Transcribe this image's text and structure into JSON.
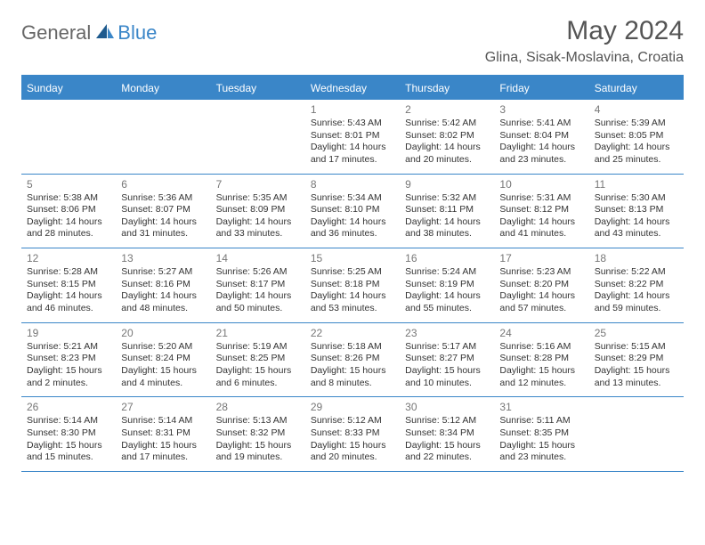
{
  "logo": {
    "general": "General",
    "blue": "Blue"
  },
  "title": "May 2024",
  "location": "Glina, Sisak-Moslavina, Croatia",
  "day_headers": [
    "Sunday",
    "Monday",
    "Tuesday",
    "Wednesday",
    "Thursday",
    "Friday",
    "Saturday"
  ],
  "colors": {
    "accent": "#3a86c8",
    "header_text": "#ffffff",
    "body_text": "#333333",
    "muted": "#777777",
    "title": "#555555"
  },
  "weeks": [
    [
      null,
      null,
      null,
      {
        "n": "1",
        "sr": "Sunrise: 5:43 AM",
        "ss": "Sunset: 8:01 PM",
        "d1": "Daylight: 14 hours",
        "d2": "and 17 minutes."
      },
      {
        "n": "2",
        "sr": "Sunrise: 5:42 AM",
        "ss": "Sunset: 8:02 PM",
        "d1": "Daylight: 14 hours",
        "d2": "and 20 minutes."
      },
      {
        "n": "3",
        "sr": "Sunrise: 5:41 AM",
        "ss": "Sunset: 8:04 PM",
        "d1": "Daylight: 14 hours",
        "d2": "and 23 minutes."
      },
      {
        "n": "4",
        "sr": "Sunrise: 5:39 AM",
        "ss": "Sunset: 8:05 PM",
        "d1": "Daylight: 14 hours",
        "d2": "and 25 minutes."
      }
    ],
    [
      {
        "n": "5",
        "sr": "Sunrise: 5:38 AM",
        "ss": "Sunset: 8:06 PM",
        "d1": "Daylight: 14 hours",
        "d2": "and 28 minutes."
      },
      {
        "n": "6",
        "sr": "Sunrise: 5:36 AM",
        "ss": "Sunset: 8:07 PM",
        "d1": "Daylight: 14 hours",
        "d2": "and 31 minutes."
      },
      {
        "n": "7",
        "sr": "Sunrise: 5:35 AM",
        "ss": "Sunset: 8:09 PM",
        "d1": "Daylight: 14 hours",
        "d2": "and 33 minutes."
      },
      {
        "n": "8",
        "sr": "Sunrise: 5:34 AM",
        "ss": "Sunset: 8:10 PM",
        "d1": "Daylight: 14 hours",
        "d2": "and 36 minutes."
      },
      {
        "n": "9",
        "sr": "Sunrise: 5:32 AM",
        "ss": "Sunset: 8:11 PM",
        "d1": "Daylight: 14 hours",
        "d2": "and 38 minutes."
      },
      {
        "n": "10",
        "sr": "Sunrise: 5:31 AM",
        "ss": "Sunset: 8:12 PM",
        "d1": "Daylight: 14 hours",
        "d2": "and 41 minutes."
      },
      {
        "n": "11",
        "sr": "Sunrise: 5:30 AM",
        "ss": "Sunset: 8:13 PM",
        "d1": "Daylight: 14 hours",
        "d2": "and 43 minutes."
      }
    ],
    [
      {
        "n": "12",
        "sr": "Sunrise: 5:28 AM",
        "ss": "Sunset: 8:15 PM",
        "d1": "Daylight: 14 hours",
        "d2": "and 46 minutes."
      },
      {
        "n": "13",
        "sr": "Sunrise: 5:27 AM",
        "ss": "Sunset: 8:16 PM",
        "d1": "Daylight: 14 hours",
        "d2": "and 48 minutes."
      },
      {
        "n": "14",
        "sr": "Sunrise: 5:26 AM",
        "ss": "Sunset: 8:17 PM",
        "d1": "Daylight: 14 hours",
        "d2": "and 50 minutes."
      },
      {
        "n": "15",
        "sr": "Sunrise: 5:25 AM",
        "ss": "Sunset: 8:18 PM",
        "d1": "Daylight: 14 hours",
        "d2": "and 53 minutes."
      },
      {
        "n": "16",
        "sr": "Sunrise: 5:24 AM",
        "ss": "Sunset: 8:19 PM",
        "d1": "Daylight: 14 hours",
        "d2": "and 55 minutes."
      },
      {
        "n": "17",
        "sr": "Sunrise: 5:23 AM",
        "ss": "Sunset: 8:20 PM",
        "d1": "Daylight: 14 hours",
        "d2": "and 57 minutes."
      },
      {
        "n": "18",
        "sr": "Sunrise: 5:22 AM",
        "ss": "Sunset: 8:22 PM",
        "d1": "Daylight: 14 hours",
        "d2": "and 59 minutes."
      }
    ],
    [
      {
        "n": "19",
        "sr": "Sunrise: 5:21 AM",
        "ss": "Sunset: 8:23 PM",
        "d1": "Daylight: 15 hours",
        "d2": "and 2 minutes."
      },
      {
        "n": "20",
        "sr": "Sunrise: 5:20 AM",
        "ss": "Sunset: 8:24 PM",
        "d1": "Daylight: 15 hours",
        "d2": "and 4 minutes."
      },
      {
        "n": "21",
        "sr": "Sunrise: 5:19 AM",
        "ss": "Sunset: 8:25 PM",
        "d1": "Daylight: 15 hours",
        "d2": "and 6 minutes."
      },
      {
        "n": "22",
        "sr": "Sunrise: 5:18 AM",
        "ss": "Sunset: 8:26 PM",
        "d1": "Daylight: 15 hours",
        "d2": "and 8 minutes."
      },
      {
        "n": "23",
        "sr": "Sunrise: 5:17 AM",
        "ss": "Sunset: 8:27 PM",
        "d1": "Daylight: 15 hours",
        "d2": "and 10 minutes."
      },
      {
        "n": "24",
        "sr": "Sunrise: 5:16 AM",
        "ss": "Sunset: 8:28 PM",
        "d1": "Daylight: 15 hours",
        "d2": "and 12 minutes."
      },
      {
        "n": "25",
        "sr": "Sunrise: 5:15 AM",
        "ss": "Sunset: 8:29 PM",
        "d1": "Daylight: 15 hours",
        "d2": "and 13 minutes."
      }
    ],
    [
      {
        "n": "26",
        "sr": "Sunrise: 5:14 AM",
        "ss": "Sunset: 8:30 PM",
        "d1": "Daylight: 15 hours",
        "d2": "and 15 minutes."
      },
      {
        "n": "27",
        "sr": "Sunrise: 5:14 AM",
        "ss": "Sunset: 8:31 PM",
        "d1": "Daylight: 15 hours",
        "d2": "and 17 minutes."
      },
      {
        "n": "28",
        "sr": "Sunrise: 5:13 AM",
        "ss": "Sunset: 8:32 PM",
        "d1": "Daylight: 15 hours",
        "d2": "and 19 minutes."
      },
      {
        "n": "29",
        "sr": "Sunrise: 5:12 AM",
        "ss": "Sunset: 8:33 PM",
        "d1": "Daylight: 15 hours",
        "d2": "and 20 minutes."
      },
      {
        "n": "30",
        "sr": "Sunrise: 5:12 AM",
        "ss": "Sunset: 8:34 PM",
        "d1": "Daylight: 15 hours",
        "d2": "and 22 minutes."
      },
      {
        "n": "31",
        "sr": "Sunrise: 5:11 AM",
        "ss": "Sunset: 8:35 PM",
        "d1": "Daylight: 15 hours",
        "d2": "and 23 minutes."
      },
      null
    ]
  ]
}
